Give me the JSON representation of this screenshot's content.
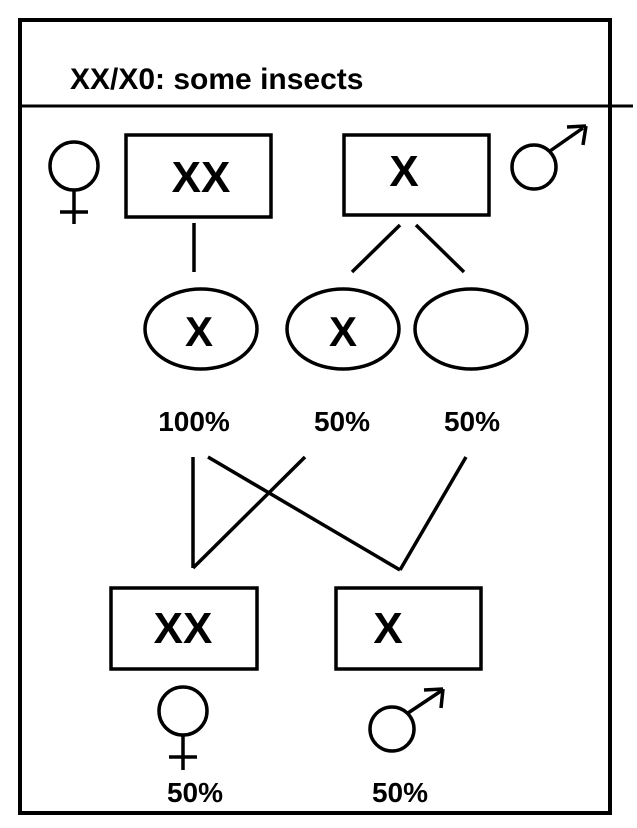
{
  "title": "XX/X0: some insects",
  "parents": {
    "female": {
      "genotype": "XX",
      "symbol": "female-symbol"
    },
    "male": {
      "genotype": "X",
      "symbol": "male-symbol"
    }
  },
  "gametes": [
    {
      "label": "X",
      "percent": "100%"
    },
    {
      "label": "X",
      "percent": "50%"
    },
    {
      "label": "",
      "percent": "50%"
    }
  ],
  "offspring": {
    "female": {
      "genotype": "XX",
      "percent": "50%",
      "symbol": "female-symbol"
    },
    "male": {
      "genotype": "X",
      "percent": "50%",
      "symbol": "male-symbol"
    }
  },
  "colors": {
    "stroke": "#000000",
    "background": "#ffffff"
  }
}
